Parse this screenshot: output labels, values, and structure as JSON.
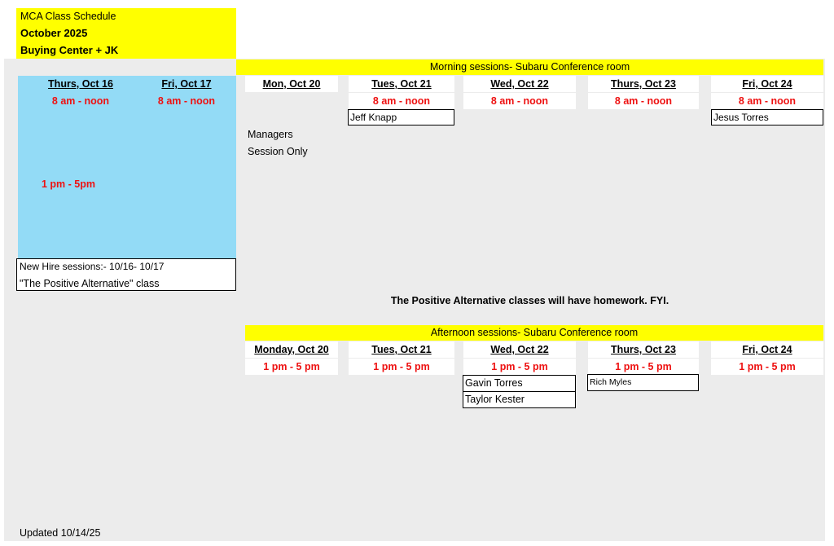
{
  "header": {
    "line1": "MCA Class Schedule",
    "line2": "October 2025",
    "line3": "Buying Center + JK"
  },
  "new_hire": {
    "days": [
      {
        "day": "Thurs, Oct 16",
        "morning": "8 am - noon"
      },
      {
        "day": "Fri, Oct 17",
        "morning": "8 am - noon"
      }
    ],
    "afternoon": "1 pm - 5pm",
    "note_line1": "New Hire sessions:- 10/16- 10/17",
    "note_line2": "\"The Positive Alternative\" class"
  },
  "morning": {
    "title": "Morning sessions- Subaru Conference room",
    "days": [
      {
        "day": "Mon, Oct 20",
        "time": ""
      },
      {
        "day": "Tues, Oct 21",
        "time": "8 am - noon"
      },
      {
        "day": "Wed, Oct 22",
        "time": "8 am - noon"
      },
      {
        "day": "Thurs, Oct 23",
        "time": "8 am - noon"
      },
      {
        "day": "Fri, Oct 24",
        "time": "8 am - noon"
      }
    ],
    "mon_note_line1": "Managers",
    "mon_note_line2": "Session Only",
    "attendees": {
      "tues": "Jeff Knapp",
      "fri": "Jesus Torres"
    }
  },
  "homework_note": "The Positive Alternative classes will have homework. FYI.",
  "afternoon": {
    "title": "Afternoon sessions- Subaru Conference room",
    "days": [
      {
        "day": "Monday, Oct 20",
        "time": "1 pm - 5 pm"
      },
      {
        "day": "Tues, Oct 21",
        "time": "1 pm - 5 pm"
      },
      {
        "day": "Wed, Oct 22",
        "time": "1 pm - 5 pm"
      },
      {
        "day": "Thurs, Oct 23",
        "time": "1 pm - 5 pm"
      },
      {
        "day": "Fri, Oct 24",
        "time": "1 pm - 5 pm"
      }
    ],
    "attendees": {
      "wed1": "Gavin Torres",
      "wed2": "Taylor Kester",
      "thurs": "Rich Myles"
    }
  },
  "footer": "Updated 10/14/25",
  "colors": {
    "yellow": "#ffff00",
    "blue": "#93dbf6",
    "gray": "#ececec",
    "red": "#ee1111"
  }
}
